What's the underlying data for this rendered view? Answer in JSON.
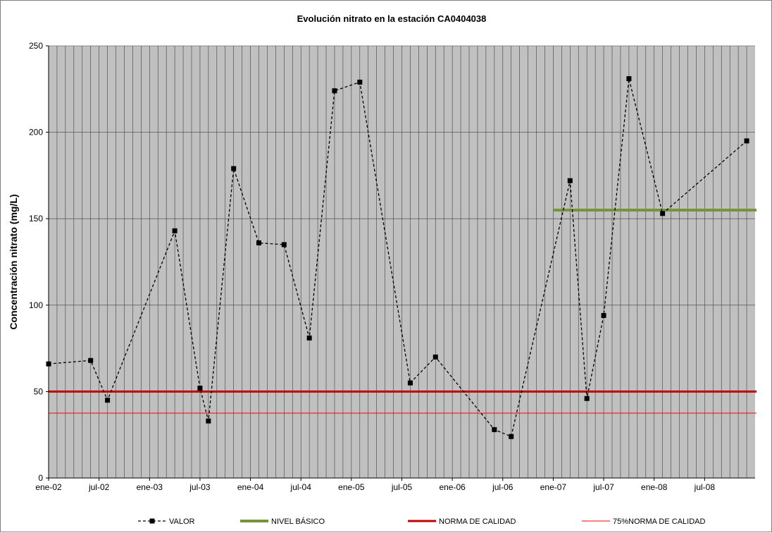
{
  "chart_data": {
    "type": "line",
    "title": "Evolución nitrato en la estación CA0404038",
    "xlabel": "",
    "ylabel": "Concentración nitrato (mg/L)",
    "ylim": [
      0,
      250
    ],
    "yticks": [
      0,
      50,
      100,
      150,
      200,
      250
    ],
    "xlim": [
      "2002-01",
      "2009-01"
    ],
    "xticks": [
      "ene-02",
      "jul-02",
      "ene-03",
      "jul-03",
      "ene-04",
      "jul-04",
      "ene-05",
      "jul-05",
      "ene-06",
      "jul-06",
      "ene-07",
      "jul-07",
      "ene-08",
      "jul-08"
    ],
    "grid": "vertical monthly, horizontal at y ticks",
    "plot_background": "#c0c0c0",
    "legend_position": "bottom",
    "series": [
      {
        "name": "VALOR",
        "style": "dashed with square markers",
        "color": "#000000",
        "x": [
          "2002-01",
          "2002-06",
          "2002-08",
          "2003-04",
          "2003-07",
          "2003-08",
          "2003-11",
          "2004-02",
          "2004-05",
          "2004-08",
          "2004-11",
          "2005-02",
          "2005-08",
          "2005-11",
          "2006-06",
          "2006-08",
          "2007-03",
          "2007-05",
          "2007-07",
          "2007-10",
          "2008-02",
          "2008-12"
        ],
        "y": [
          66,
          68,
          45,
          143,
          52,
          33,
          179,
          136,
          135,
          81,
          224,
          229,
          55,
          70,
          28,
          24,
          172,
          46,
          94,
          231,
          153,
          195
        ]
      },
      {
        "name": "NIVEL BÁSICO",
        "color": "#77933c",
        "x": [
          "2007-01",
          "2009-01"
        ],
        "y": [
          155,
          155
        ]
      },
      {
        "name": "NORMA DE CALIDAD",
        "color": "#c00000",
        "x": [
          "2002-01",
          "2009-01"
        ],
        "y": [
          50,
          50
        ]
      },
      {
        "name": "75%NORMA DE CALIDAD",
        "color": "#ff0000",
        "x": [
          "2002-01",
          "2009-01"
        ],
        "y": [
          37.5,
          37.5
        ]
      }
    ]
  }
}
